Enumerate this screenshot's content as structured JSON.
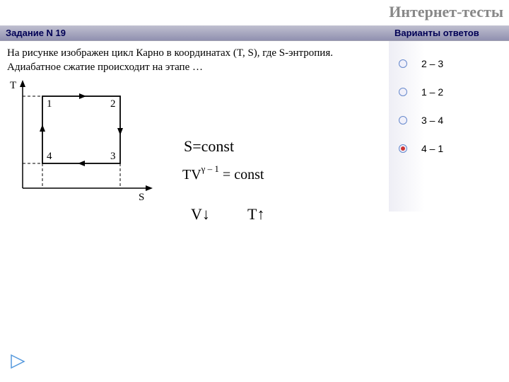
{
  "title": "Интернет-тесты",
  "header": {
    "task_label": "Задание N 19",
    "answers_label": "Варианты ответов"
  },
  "question": {
    "text": "На рисунке изображен цикл Карно в координатах (T, S), где S-энтропия. Адиабатное сжатие происходит на этапе …"
  },
  "diagram": {
    "y_label": "T",
    "x_label": "S",
    "pts": {
      "p1": "1",
      "p2": "2",
      "p3": "3",
      "p4": "4"
    }
  },
  "equations": {
    "eq1": "S=const",
    "eq2_pre": "TV",
    "eq2_exp": "γ – 1",
    "eq2_post": " = const",
    "eq3a": "V↓",
    "eq3b": "T↑"
  },
  "answers": [
    {
      "label": "2 – 3",
      "selected": false
    },
    {
      "label": "1 – 2",
      "selected": false
    },
    {
      "label": "3 – 4",
      "selected": false
    },
    {
      "label": "4 – 1",
      "selected": true
    }
  ],
  "colors": {
    "title": "#888888",
    "header_text": "#000055",
    "radio_border": "#6688cc",
    "radio_fill": "#cc3333"
  }
}
